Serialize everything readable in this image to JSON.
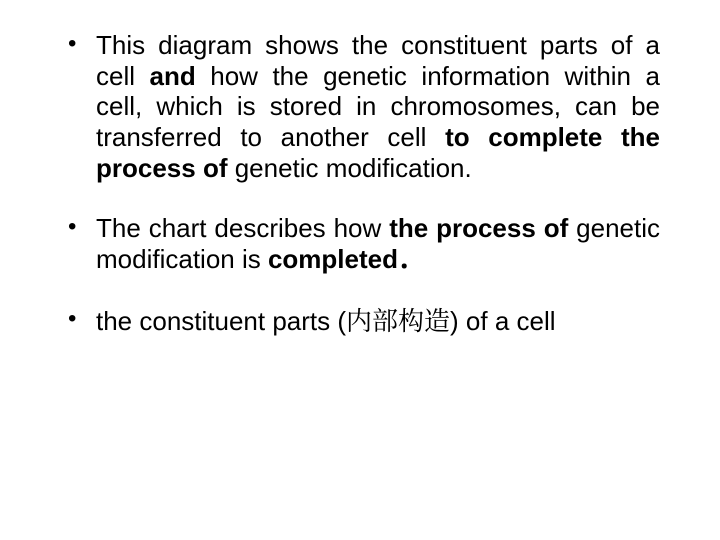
{
  "slide": {
    "background_color": "#ffffff",
    "text_color": "#000000",
    "font_family": "Comic Sans MS",
    "font_size_pt": 26,
    "bullets": [
      {
        "runs": [
          {
            "t": " This diagram shows the constituent parts of a cell ",
            "bold": false
          },
          {
            "t": "and",
            "bold": true
          },
          {
            "t": " how the genetic information within a cell, which is stored in chromosomes, can be transferred to another cell ",
            "bold": false
          },
          {
            "t": "to complete the process of ",
            "bold": true
          },
          {
            "t": "genetic modification.",
            "bold": false
          }
        ]
      },
      {
        "runs": [
          {
            "t": "The chart describes how ",
            "bold": false
          },
          {
            "t": "the process of ",
            "bold": true
          },
          {
            "t": "genetic modification is ",
            "bold": false
          },
          {
            "t": "completed．",
            "bold": true
          }
        ]
      },
      {
        "runs": [
          {
            "t": "the constituent parts (",
            "bold": false
          },
          {
            "t": "内部构造",
            "bold": false,
            "cjk": true
          },
          {
            "t": ") of a cell",
            "bold": false
          }
        ]
      }
    ]
  }
}
